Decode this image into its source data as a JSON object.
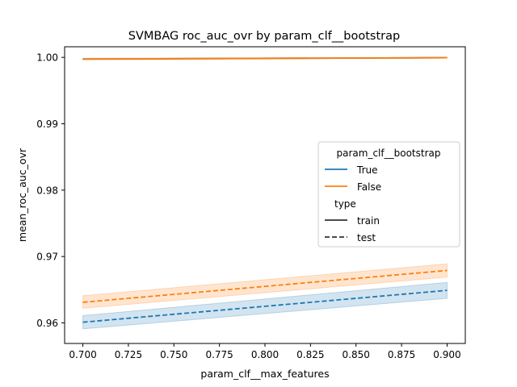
{
  "chart_data": {
    "type": "line",
    "title": "SVMBAG roc_auc_ovr by param_clf__bootstrap",
    "xlabel": "param_clf__max_features",
    "ylabel": "mean_roc_auc_ovr",
    "xlim": [
      0.69,
      0.91
    ],
    "ylim": [
      0.9569,
      1.0016
    ],
    "xticks": [
      0.7,
      0.725,
      0.75,
      0.775,
      0.8,
      0.825,
      0.85,
      0.875,
      0.9
    ],
    "xtick_labels": [
      "0.700",
      "0.725",
      "0.750",
      "0.775",
      "0.800",
      "0.825",
      "0.850",
      "0.875",
      "0.900"
    ],
    "yticks": [
      0.96,
      0.97,
      0.98,
      0.99,
      1.0
    ],
    "ytick_labels": [
      "0.96",
      "0.97",
      "0.98",
      "0.99",
      "1.00"
    ],
    "grid": false,
    "legend": {
      "placement": "center-right",
      "hue_title": "param_clf__bootstrap",
      "hue_entries": [
        {
          "label": "True",
          "color": "#1f77b4"
        },
        {
          "label": "False",
          "color": "#ff7f0e"
        }
      ],
      "style_title": "type",
      "style_entries": [
        {
          "label": "train",
          "dash": "solid"
        },
        {
          "label": "test",
          "dash": "dashed"
        }
      ]
    },
    "series": [
      {
        "bootstrap": "True",
        "type": "train",
        "color": "#1f77b4",
        "dash": "solid",
        "x": [
          0.7,
          0.9
        ],
        "y": [
          0.99975,
          0.99995
        ],
        "ci_low": [
          0.99965,
          0.9999
        ],
        "ci_high": [
          0.99985,
          1.0
        ]
      },
      {
        "bootstrap": "False",
        "type": "train",
        "color": "#ff7f0e",
        "dash": "solid",
        "x": [
          0.7,
          0.9
        ],
        "y": [
          0.99975,
          0.99995
        ],
        "ci_low": [
          0.99965,
          0.9999
        ],
        "ci_high": [
          0.99985,
          1.0
        ]
      },
      {
        "bootstrap": "True",
        "type": "test",
        "color": "#1f77b4",
        "dash": "dashed",
        "x": [
          0.7,
          0.9
        ],
        "y": [
          0.9601,
          0.9649
        ],
        "ci_low": [
          0.9591,
          0.9637
        ],
        "ci_high": [
          0.9611,
          0.9661
        ]
      },
      {
        "bootstrap": "False",
        "type": "test",
        "color": "#ff7f0e",
        "dash": "dashed",
        "x": [
          0.7,
          0.9
        ],
        "y": [
          0.9631,
          0.9679
        ],
        "ci_low": [
          0.9622,
          0.9669
        ],
        "ci_high": [
          0.9641,
          0.9689
        ]
      }
    ]
  }
}
